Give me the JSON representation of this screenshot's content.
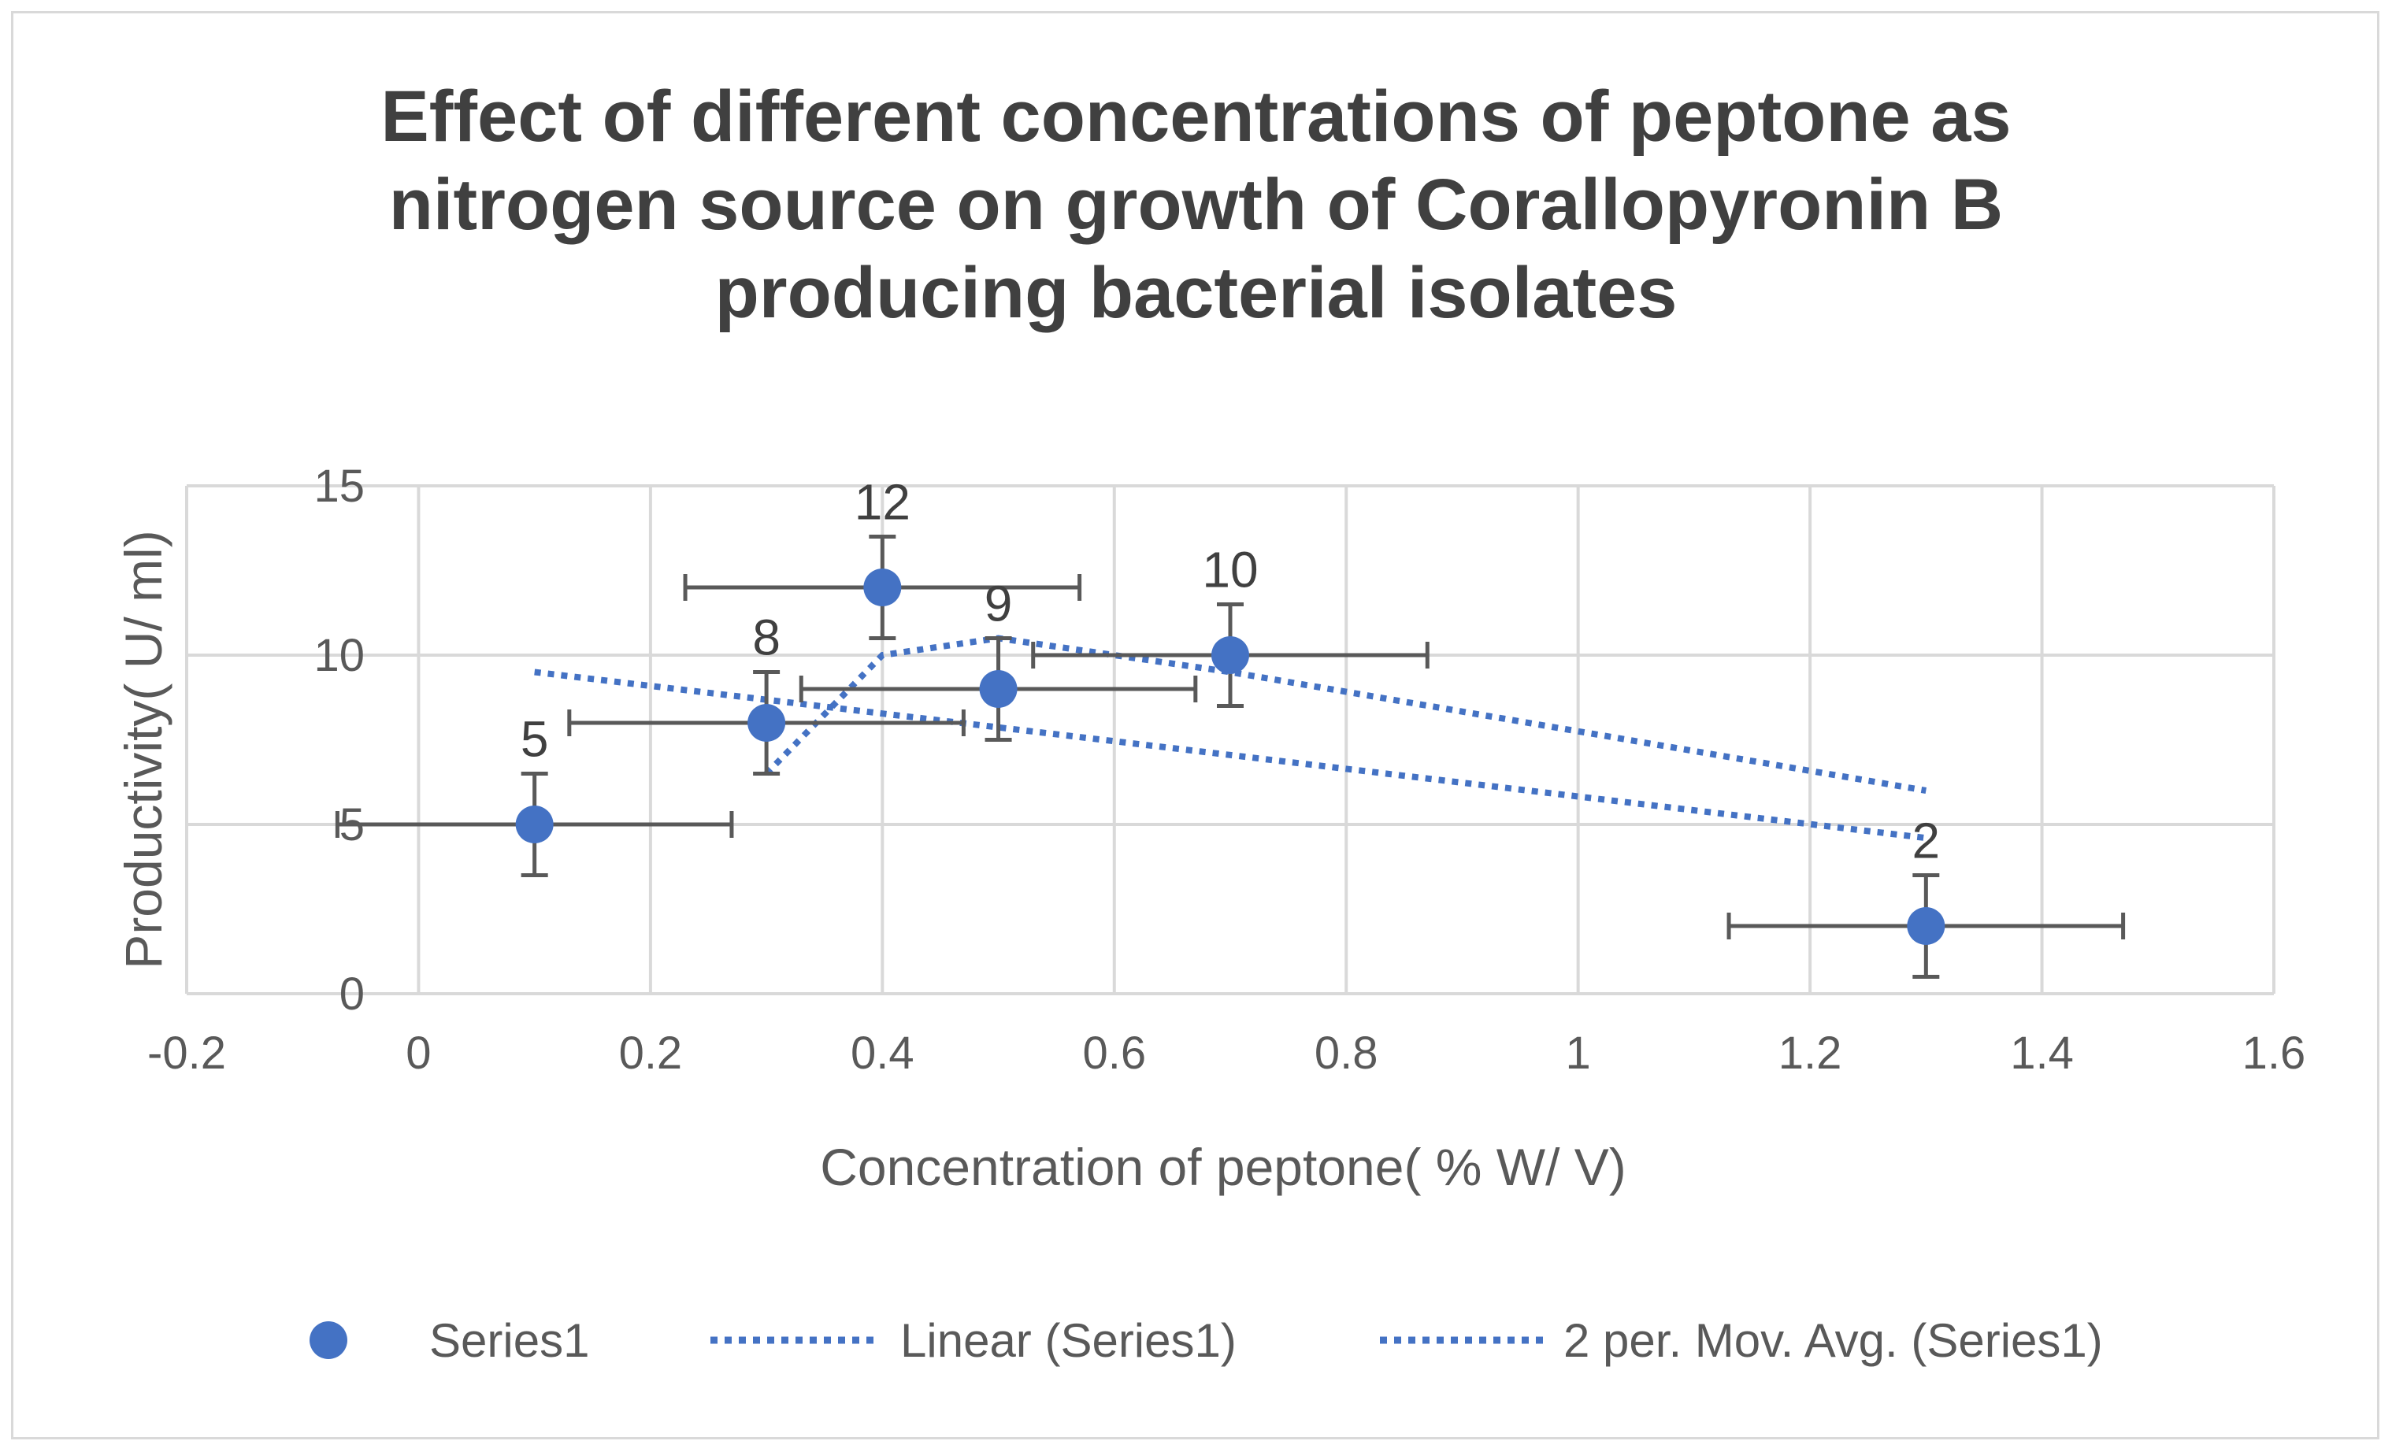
{
  "chart_data": {
    "type": "scatter",
    "title": "Effect of different concentrations of peptone as nitrogen source on growth of Corallopyronin B producing bacterial isolates",
    "title_lines": [
      "Effect of different concentrations of peptone as",
      "nitrogen source on growth of Corallopyronin B",
      "producing bacterial isolates"
    ],
    "xlabel": "Concentration of peptone( % W/ V)",
    "ylabel": "Productivity( U/ ml)",
    "xlim": [
      -0.2,
      1.6
    ],
    "ylim": [
      0,
      15
    ],
    "xticks": [
      -0.2,
      0,
      0.2,
      0.4,
      0.6,
      0.8,
      1,
      1.2,
      1.4,
      1.6
    ],
    "xtick_labels": [
      "-0.2",
      "0",
      "0.2",
      "0.4",
      "0.6",
      "0.8",
      "1",
      "1.2",
      "1.4",
      "1.6"
    ],
    "yticks": [
      0,
      5,
      10,
      15
    ],
    "ytick_labels": [
      "0",
      "5",
      "10",
      "15"
    ],
    "grid": true,
    "series": [
      {
        "name": "Series1",
        "color": "#4472c4",
        "x": [
          0.1,
          0.3,
          0.4,
          0.5,
          0.7,
          1.3
        ],
        "y": [
          5,
          8,
          12,
          9,
          10,
          2
        ],
        "data_labels": [
          "5",
          "8",
          "12",
          "9",
          "10",
          "2"
        ],
        "x_error": 0.17,
        "y_error": 1.5
      }
    ],
    "trendlines": [
      {
        "name": "Linear (Series1)",
        "kind": "linear",
        "x": [
          0.1,
          1.3
        ],
        "y": [
          9.5,
          4.6
        ]
      },
      {
        "name": "2 per. Mov. Avg. (Series1)",
        "kind": "moving_average",
        "x": [
          0.3,
          0.4,
          0.5,
          0.7,
          1.3
        ],
        "y": [
          6.5,
          10,
          10.5,
          9.5,
          6
        ]
      }
    ],
    "legend": {
      "position": "bottom",
      "entries": [
        "Series1",
        "Linear (Series1)",
        "2 per. Mov. Avg. (Series1)"
      ]
    }
  }
}
